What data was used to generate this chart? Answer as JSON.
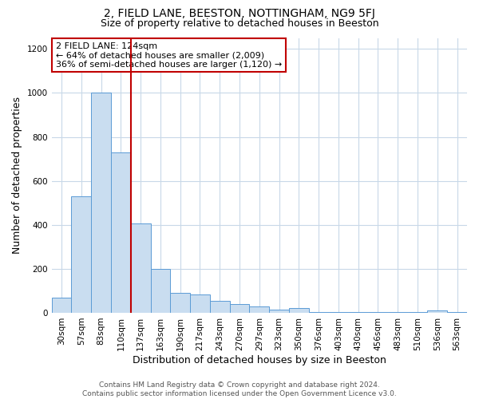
{
  "title": "2, FIELD LANE, BEESTON, NOTTINGHAM, NG9 5FJ",
  "subtitle": "Size of property relative to detached houses in Beeston",
  "xlabel": "Distribution of detached houses by size in Beeston",
  "ylabel": "Number of detached properties",
  "categories": [
    "30sqm",
    "57sqm",
    "83sqm",
    "110sqm",
    "137sqm",
    "163sqm",
    "190sqm",
    "217sqm",
    "243sqm",
    "270sqm",
    "297sqm",
    "323sqm",
    "350sqm",
    "376sqm",
    "403sqm",
    "430sqm",
    "456sqm",
    "483sqm",
    "510sqm",
    "536sqm",
    "563sqm"
  ],
  "values": [
    68,
    530,
    1000,
    730,
    405,
    200,
    90,
    85,
    55,
    38,
    30,
    15,
    20,
    5,
    4,
    3,
    3,
    3,
    3,
    10,
    3
  ],
  "bar_color": "#c9ddf0",
  "bar_edge_color": "#5b9bd5",
  "vline_x": 3.5,
  "vline_color": "#c00000",
  "annotation_text": "2 FIELD LANE: 124sqm\n← 64% of detached houses are smaller (2,009)\n36% of semi-detached houses are larger (1,120) →",
  "annotation_box_color": "#ffffff",
  "annotation_box_edge_color": "#c00000",
  "ylim": [
    0,
    1250
  ],
  "yticks": [
    0,
    200,
    400,
    600,
    800,
    1000,
    1200
  ],
  "footer_line1": "Contains HM Land Registry data © Crown copyright and database right 2024.",
  "footer_line2": "Contains public sector information licensed under the Open Government Licence v3.0.",
  "bg_color": "#ffffff",
  "grid_color": "#c8d8e8",
  "title_fontsize": 10,
  "subtitle_fontsize": 9,
  "axis_label_fontsize": 9,
  "tick_fontsize": 7.5,
  "footer_fontsize": 6.5,
  "annotation_fontsize": 8
}
